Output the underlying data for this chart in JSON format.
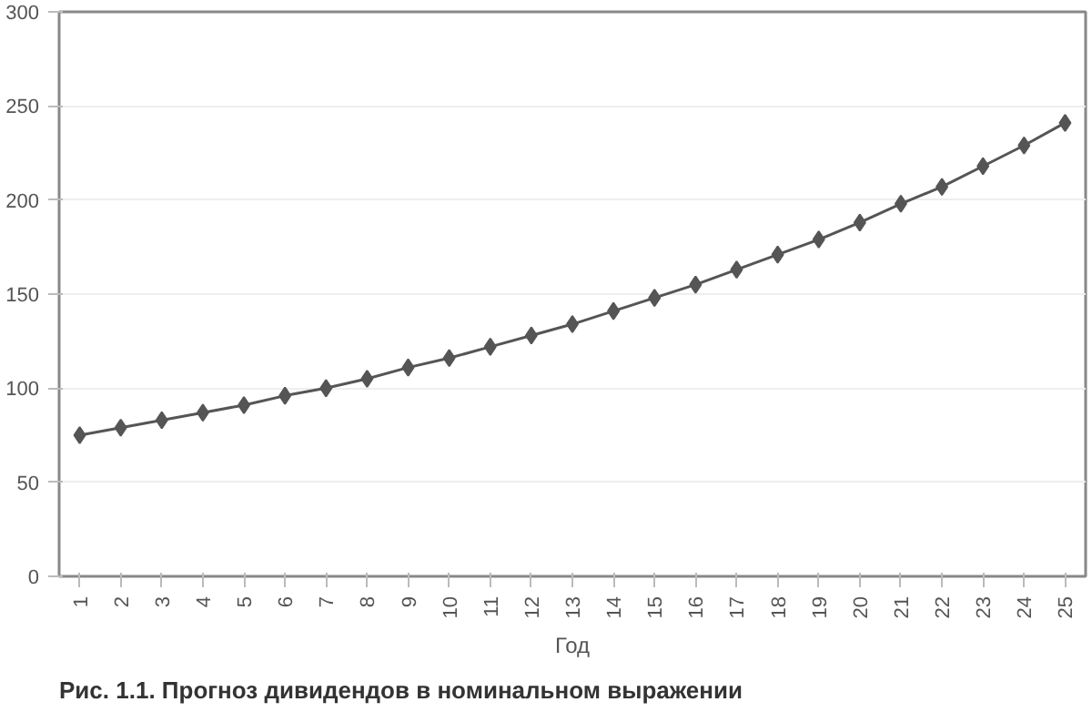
{
  "chart_data": {
    "type": "line",
    "title": "Рис. 1.1. Прогноз дивидендов в номинальном выражении",
    "xlabel": "Год",
    "categories": [
      "1",
      "2",
      "3",
      "4",
      "5",
      "6",
      "7",
      "8",
      "9",
      "10",
      "11",
      "12",
      "13",
      "14",
      "15",
      "16",
      "17",
      "18",
      "19",
      "20",
      "21",
      "22",
      "23",
      "24",
      "25"
    ],
    "series": [
      {
        "color": "#555555",
        "values": [
          75,
          79,
          83,
          87,
          91,
          96,
          100,
          105,
          111,
          116,
          122,
          128,
          134,
          141,
          148,
          155,
          163,
          171,
          179,
          188,
          198,
          207,
          218,
          229,
          241
        ]
      }
    ],
    "ylim": [
      0,
      300
    ],
    "yticks": [
      0,
      50,
      100,
      150,
      200,
      250,
      300
    ],
    "grid": "y",
    "marker": "diamond",
    "line_style": "solid"
  }
}
